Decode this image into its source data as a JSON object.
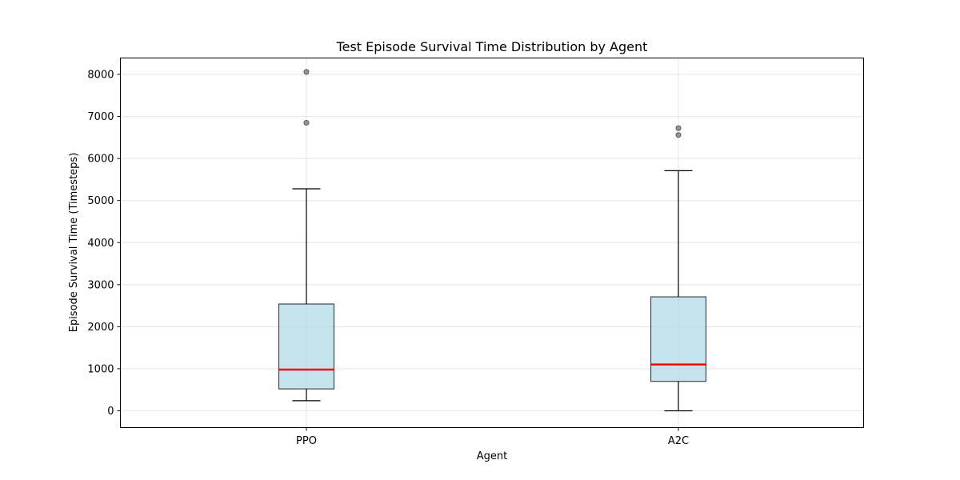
{
  "chart_data": {
    "type": "box",
    "title": "Test Episode Survival Time Distribution by Agent",
    "xlabel": "Agent",
    "ylabel": "Episode Survival Time (Timesteps)",
    "ylim": [
      -400,
      8500
    ],
    "yticks": [
      0,
      1000,
      2000,
      3000,
      4000,
      5000,
      6000,
      7000,
      8000
    ],
    "yticklabels": [
      "0",
      "1000",
      "2000",
      "3000",
      "4000",
      "5000",
      "6000",
      "7000",
      "8000"
    ],
    "categories": [
      "PPO",
      "A2C"
    ],
    "grid": true,
    "boxes": [
      {
        "name": "PPO",
        "whisker_low": 240,
        "q1": 520,
        "median": 980,
        "q3": 2540,
        "whisker_high": 5280,
        "outliers": [
          6850,
          8060
        ]
      },
      {
        "name": "A2C",
        "whisker_low": 0,
        "q1": 700,
        "median": 1100,
        "q3": 2710,
        "whisker_high": 5710,
        "outliers": [
          6560,
          6720
        ]
      }
    ],
    "colors": {
      "box_fill": "#add8e6",
      "box_edge": "#000000",
      "median": "#ff0000",
      "whisker": "#000000",
      "outlier": "#808080",
      "grid": "#e5e5e5"
    }
  }
}
